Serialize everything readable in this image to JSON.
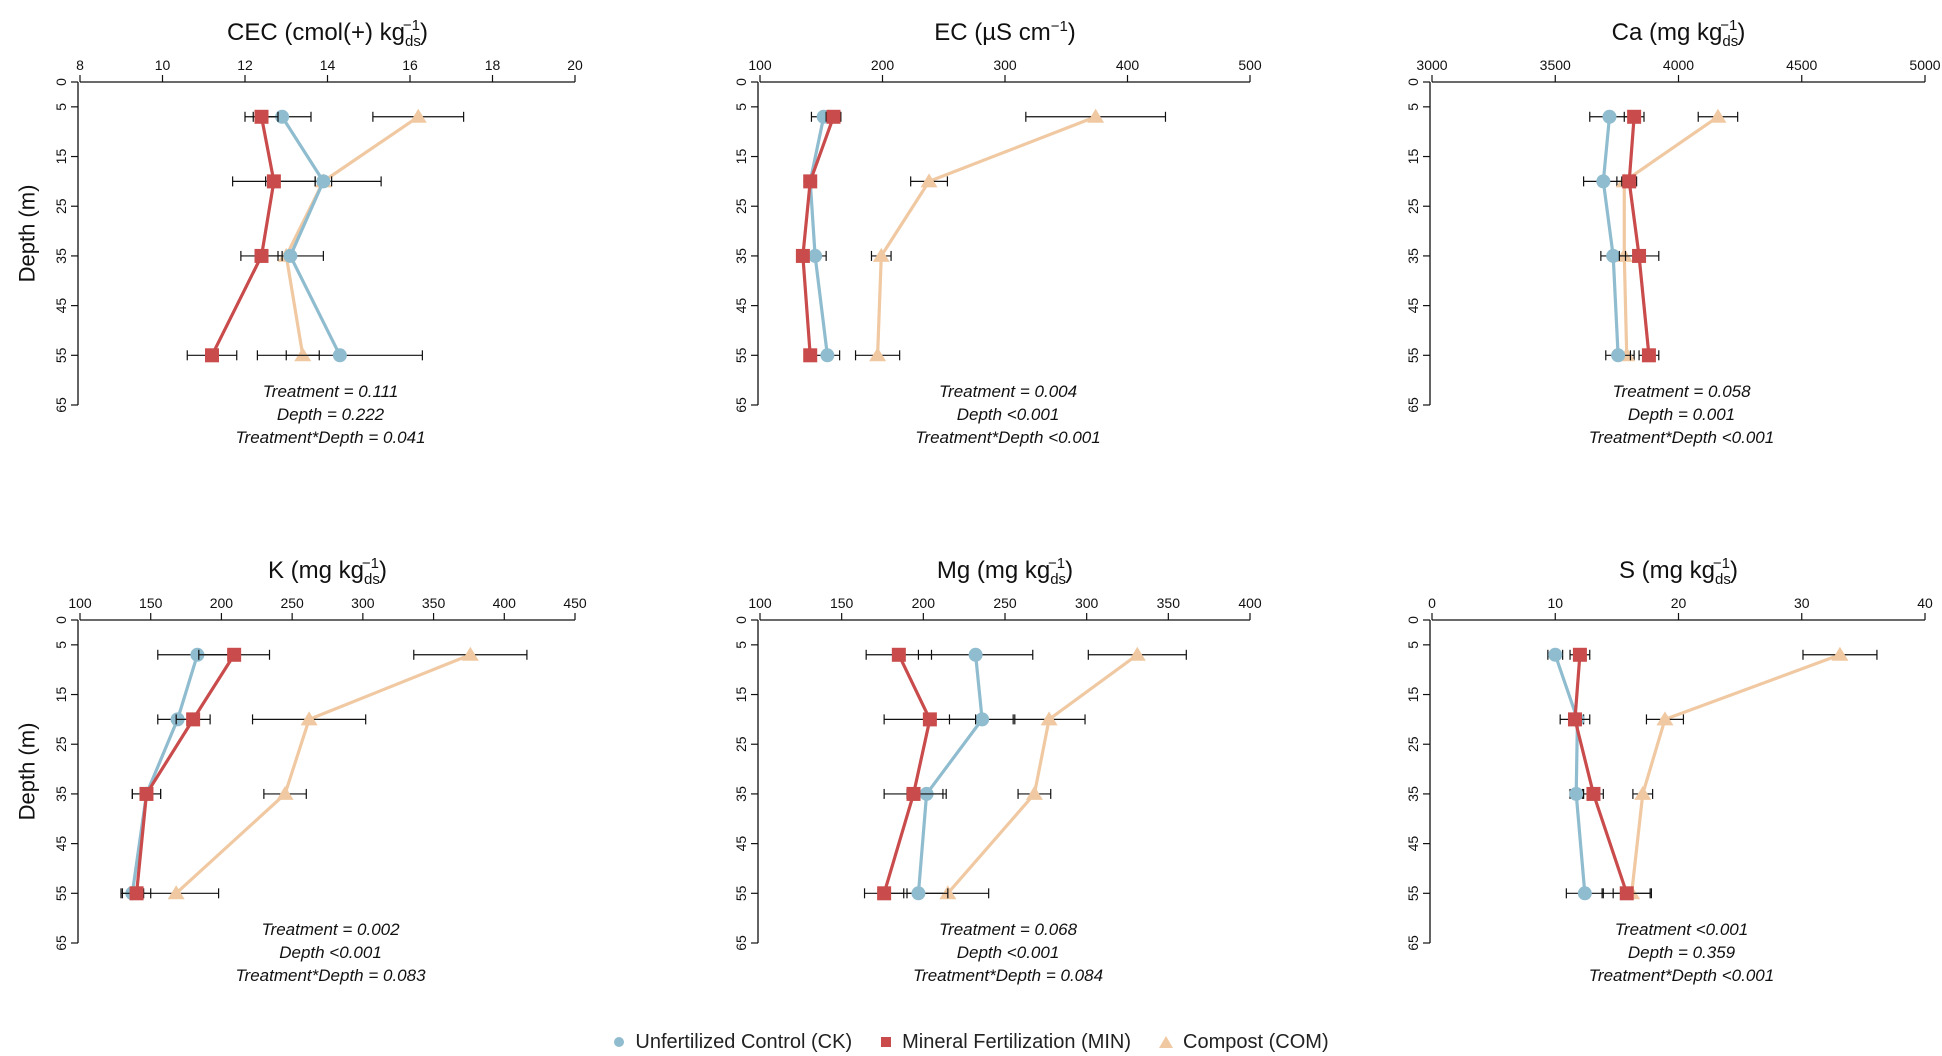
{
  "colors": {
    "ck": "#8fbccf",
    "min": "#c94b4b",
    "com": "#f0c9a2",
    "axis": "#111111",
    "err": "#111111"
  },
  "y_axis_label": "Depth (m)",
  "depth_ticks": [
    "0",
    "5",
    "15",
    "25",
    "35",
    "45",
    "55",
    "65"
  ],
  "legend": {
    "items": [
      {
        "key": "ck",
        "label": "Unfertilized Control (CK)",
        "marker": "circle"
      },
      {
        "key": "min",
        "label": "Mineral Fertilization (MIN)",
        "marker": "square"
      },
      {
        "key": "com",
        "label": "Compost (COM)",
        "marker": "triangle"
      }
    ]
  },
  "chart_data": [
    {
      "type": "line",
      "title_main": "CEC (cmol(+) kg",
      "title_sub": "ds",
      "title_sup": "−1",
      "title_tail": ")",
      "xlim": [
        8,
        20
      ],
      "xticks": [
        8,
        10,
        12,
        14,
        16,
        18,
        20
      ],
      "ylim": [
        0,
        65
      ],
      "depths": [
        7,
        20,
        35,
        55
      ],
      "series": [
        {
          "name": "Unfertilized Control (CK)",
          "key": "ck",
          "values": [
            12.9,
            13.9,
            13.1,
            14.3
          ],
          "errors": [
            0.7,
            1.4,
            0.8,
            2.0
          ]
        },
        {
          "name": "Mineral Fertilization (MIN)",
          "key": "min",
          "values": [
            12.4,
            12.7,
            12.4,
            11.2
          ],
          "errors": [
            0.4,
            1.0,
            0.5,
            0.6
          ]
        },
        {
          "name": "Compost (COM)",
          "key": "com",
          "values": [
            16.2,
            13.9,
            13.0,
            13.4
          ],
          "errors": [
            1.1,
            0.2,
            0.2,
            0.4
          ]
        }
      ],
      "stats": [
        "Treatment = 0.111",
        "Depth = 0.222",
        "Treatment*Depth = 0.041"
      ]
    },
    {
      "type": "line",
      "title_main": "EC (µS cm",
      "title_sub": "",
      "title_sup": "−1",
      "title_tail": ")",
      "xlim": [
        100,
        500
      ],
      "xticks": [
        100,
        200,
        300,
        400,
        500
      ],
      "ylim": [
        0,
        65
      ],
      "depths": [
        7,
        20,
        35,
        55
      ],
      "series": [
        {
          "name": "Unfertilized Control (CK)",
          "key": "ck",
          "values": [
            152,
            141,
            145,
            155
          ],
          "errors": [
            10,
            4,
            9,
            10
          ]
        },
        {
          "name": "Mineral Fertilization (MIN)",
          "key": "min",
          "values": [
            160,
            141,
            135,
            141
          ],
          "errors": [
            6,
            4,
            4,
            5
          ]
        },
        {
          "name": "Compost (COM)",
          "key": "com",
          "values": [
            374,
            238,
            199,
            196
          ],
          "errors": [
            57,
            15,
            8,
            18
          ]
        }
      ],
      "stats": [
        "Treatment = 0.004",
        "Depth <0.001",
        "Treatment*Depth <0.001"
      ]
    },
    {
      "type": "line",
      "title_main": "Ca (mg kg",
      "title_sub": "ds",
      "title_sup": "−1",
      "title_tail": ")",
      "xlim": [
        3000,
        5000
      ],
      "xticks": [
        3000,
        3500,
        4000,
        4500,
        5000
      ],
      "ylim": [
        0,
        65
      ],
      "depths": [
        7,
        20,
        35,
        55
      ],
      "series": [
        {
          "name": "Unfertilized Control (CK)",
          "key": "ck",
          "values": [
            3720,
            3695,
            3735,
            3755
          ],
          "errors": [
            80,
            80,
            50,
            50
          ]
        },
        {
          "name": "Mineral Fertilization (MIN)",
          "key": "min",
          "values": [
            3820,
            3800,
            3840,
            3880
          ],
          "errors": [
            40,
            30,
            80,
            40
          ]
        },
        {
          "name": "Compost (COM)",
          "key": "com",
          "values": [
            4160,
            3780,
            3780,
            3790
          ],
          "errors": [
            80,
            30,
            50,
            30
          ]
        }
      ],
      "stats": [
        "Treatment = 0.058",
        "Depth = 0.001",
        "Treatment*Depth <0.001"
      ]
    },
    {
      "type": "line",
      "title_main": "K (mg kg",
      "title_sub": "ds",
      "title_sup": "−1",
      "title_tail": ")",
      "xlim": [
        100,
        450
      ],
      "xticks": [
        100,
        150,
        200,
        250,
        300,
        350,
        400,
        450
      ],
      "ylim": [
        0,
        65
      ],
      "depths": [
        7,
        20,
        35,
        55
      ],
      "series": [
        {
          "name": "Unfertilized Control (CK)",
          "key": "ck",
          "values": [
            183,
            169,
            147,
            137
          ],
          "errors": [
            28,
            14,
            10,
            8
          ]
        },
        {
          "name": "Mineral Fertilization (MIN)",
          "key": "min",
          "values": [
            209,
            180,
            147,
            140
          ],
          "errors": [
            25,
            12,
            10,
            10
          ]
        },
        {
          "name": "Compost (COM)",
          "key": "com",
          "values": [
            376,
            262,
            245,
            168
          ],
          "errors": [
            40,
            40,
            15,
            30
          ]
        }
      ],
      "stats": [
        "Treatment = 0.002",
        "Depth <0.001",
        "Treatment*Depth = 0.083"
      ]
    },
    {
      "type": "line",
      "title_main": "Mg (mg kg",
      "title_sub": "ds",
      "title_sup": "−1",
      "title_tail": ")",
      "xlim": [
        100,
        400
      ],
      "xticks": [
        100,
        150,
        200,
        250,
        300,
        350,
        400
      ],
      "ylim": [
        0,
        65
      ],
      "depths": [
        7,
        20,
        35,
        55
      ],
      "series": [
        {
          "name": "Unfertilized Control (CK)",
          "key": "ck",
          "values": [
            232,
            236,
            202,
            197
          ],
          "errors": [
            35,
            20,
            12,
            18
          ]
        },
        {
          "name": "Mineral Fertilization (MIN)",
          "key": "min",
          "values": [
            185,
            204,
            194,
            176
          ],
          "errors": [
            20,
            28,
            18,
            12
          ]
        },
        {
          "name": "Compost (COM)",
          "key": "com",
          "values": [
            331,
            277,
            268,
            215
          ],
          "errors": [
            30,
            22,
            10,
            25
          ]
        }
      ],
      "stats": [
        "Treatment = 0.068",
        "Depth <0.001",
        "Treatment*Depth = 0.084"
      ]
    },
    {
      "type": "line",
      "title_main": "S (mg kg",
      "title_sub": "ds",
      "title_sup": "−1",
      "title_tail": ")",
      "xlim": [
        0,
        40
      ],
      "xticks": [
        0,
        10,
        20,
        30,
        40
      ],
      "ylim": [
        0,
        65
      ],
      "depths": [
        7,
        20,
        35,
        55
      ],
      "series": [
        {
          "name": "Unfertilized Control (CK)",
          "key": "ck",
          "values": [
            10.0,
            11.8,
            11.7,
            12.4
          ],
          "errors": [
            0.6,
            0.5,
            0.5,
            1.5
          ]
        },
        {
          "name": "Mineral Fertilization (MIN)",
          "key": "min",
          "values": [
            12.0,
            11.6,
            13.1,
            15.8
          ],
          "errors": [
            0.8,
            1.2,
            0.8,
            2.0
          ]
        },
        {
          "name": "Compost (COM)",
          "key": "com",
          "values": [
            33.1,
            18.9,
            17.1,
            16.2
          ],
          "errors": [
            3.0,
            1.5,
            0.8,
            1.5
          ]
        }
      ],
      "stats": [
        "Treatment <0.001",
        "Depth = 0.359",
        "Treatment*Depth <0.001"
      ]
    }
  ]
}
